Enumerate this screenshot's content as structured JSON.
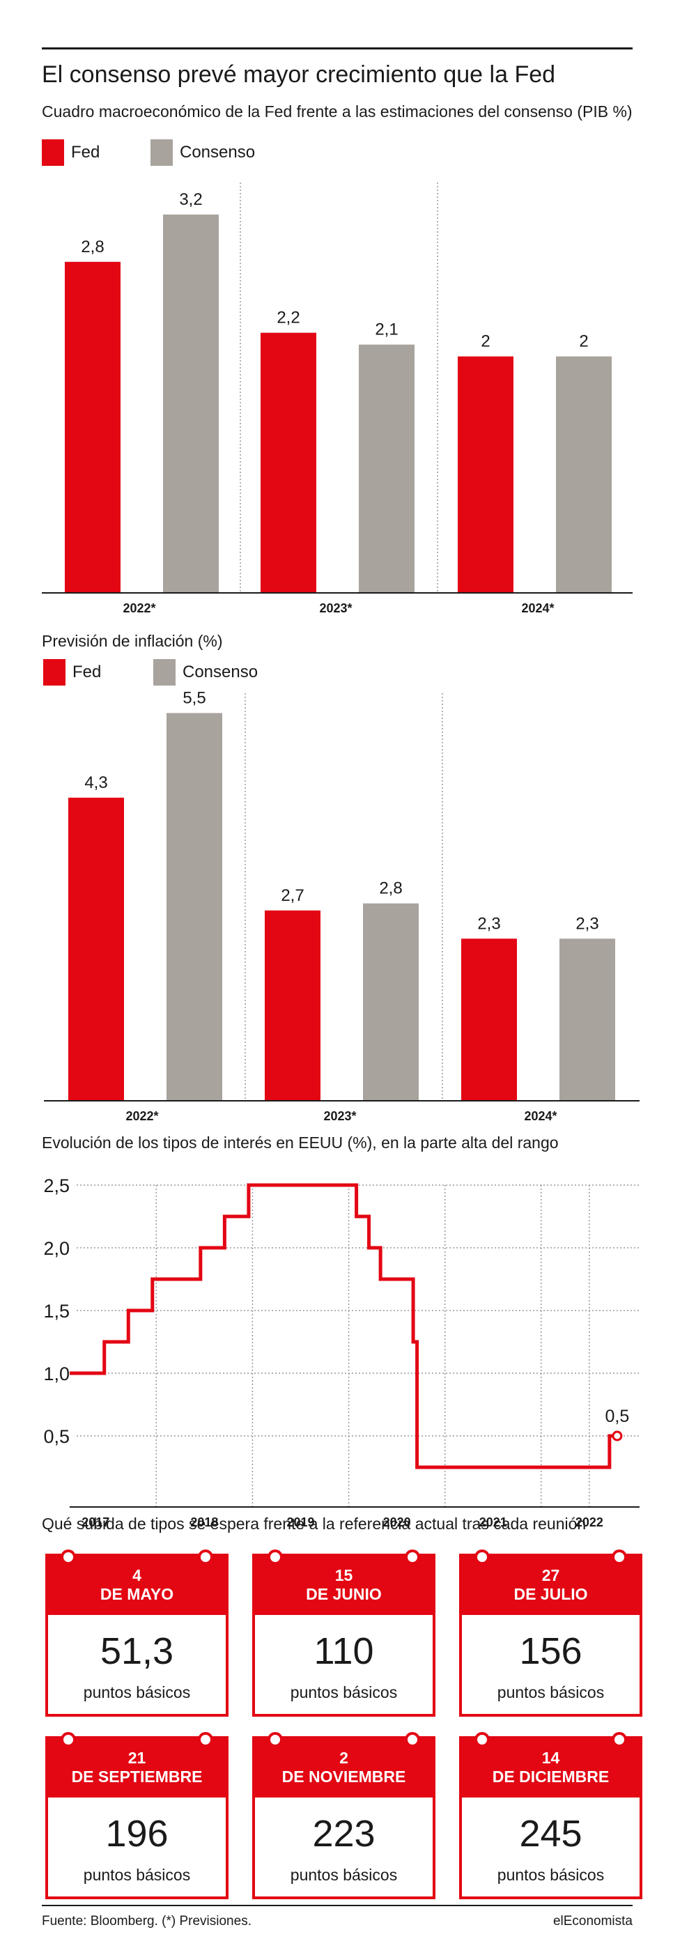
{
  "header": {
    "title": "El consenso prevé mayor crecimiento que la Fed",
    "subtitle": "Cuadro macroeconómico de la Fed frente a las estimaciones del consenso (PIB %)"
  },
  "legend": {
    "fed": "Fed",
    "consenso": "Consenso"
  },
  "colors": {
    "fed": "#e30613",
    "consenso": "#a8a39d",
    "rate_line": "#e30613"
  },
  "inflation": {
    "title": "Previsión de inflación (%)"
  },
  "rates": {
    "title": "Evolución de los tipos de interés en EEUU (%), en la parte alta del rango"
  },
  "chart_data": [
    {
      "type": "bar",
      "title": "Cuadro macroeconómico de la Fed frente a las estimaciones del consenso (PIB %)",
      "categories": [
        "2022*",
        "2023*",
        "2024*"
      ],
      "series": [
        {
          "name": "Fed",
          "values": [
            2.8,
            2.2,
            2
          ],
          "labels": [
            "2,8",
            "2,2",
            "2"
          ]
        },
        {
          "name": "Consenso",
          "values": [
            3.2,
            2.1,
            2
          ],
          "labels": [
            "3,2",
            "2,1",
            "2"
          ]
        }
      ],
      "ylim": [
        0,
        3.5
      ],
      "grid": false,
      "legend": "top-left"
    },
    {
      "type": "bar",
      "title": "Previsión de inflación (%)",
      "categories": [
        "2022*",
        "2023*",
        "2024*"
      ],
      "series": [
        {
          "name": "Fed",
          "values": [
            4.3,
            2.7,
            2.3
          ],
          "labels": [
            "4,3",
            "2,7",
            "2,3"
          ]
        },
        {
          "name": "Consenso",
          "values": [
            5.5,
            2.8,
            2.3
          ],
          "labels": [
            "5,5",
            "2,8",
            "2,3"
          ]
        }
      ],
      "ylim": [
        0,
        5.9
      ],
      "grid": false,
      "legend": "top-left"
    },
    {
      "type": "line",
      "title": "Evolución de los tipos de interés en EEUU (%), en la parte alta del rango",
      "step": true,
      "x_ticks": [
        "2017",
        "2018",
        "2019",
        "2020",
        "2021",
        "2022"
      ],
      "y_ticks": [
        1.0,
        1.5,
        2.0,
        2.5,
        0.5
      ],
      "y_tick_labels": [
        "1,0",
        "1,5",
        "2,0",
        "2,5",
        "0,5"
      ],
      "xlim": [
        2016.6,
        2022.45
      ],
      "ylim": [
        0,
        2.5
      ],
      "x": [
        2016.6,
        2016.96,
        2017.21,
        2017.46,
        2017.96,
        2018.21,
        2018.46,
        2018.71,
        2018.97,
        2019.58,
        2019.71,
        2019.83,
        2020.17,
        2020.21,
        2022.21,
        2022.29
      ],
      "y": [
        1.0,
        1.25,
        1.5,
        1.75,
        2.0,
        2.25,
        2.5,
        2.5,
        2.5,
        2.25,
        2.0,
        1.75,
        1.25,
        0.25,
        0.5,
        0.5
      ],
      "end_label": "0,5",
      "grid": true
    }
  ],
  "meetings": {
    "title": "Qué subida de tipos se espera frente a la referencia actual tras cada reunión",
    "items": [
      {
        "date_line1": "4",
        "date_line2": "DE MAYO",
        "value": "51,3",
        "unit": "puntos básicos"
      },
      {
        "date_line1": "15",
        "date_line2": "DE JUNIO",
        "value": "110",
        "unit": "puntos básicos"
      },
      {
        "date_line1": "27",
        "date_line2": "DE JULIO",
        "value": "156",
        "unit": "puntos básicos"
      },
      {
        "date_line1": "21",
        "date_line2": "DE SEPTIEMBRE",
        "value": "196",
        "unit": "puntos básicos"
      },
      {
        "date_line1": "2",
        "date_line2": "DE NOVIEMBRE",
        "value": "223",
        "unit": "puntos básicos"
      },
      {
        "date_line1": "14",
        "date_line2": "DE DICIEMBRE",
        "value": "245",
        "unit": "puntos básicos"
      }
    ]
  },
  "footer": {
    "source": "Fuente: Bloomberg. (*) Previsiones.",
    "brand": "elEconomista"
  }
}
